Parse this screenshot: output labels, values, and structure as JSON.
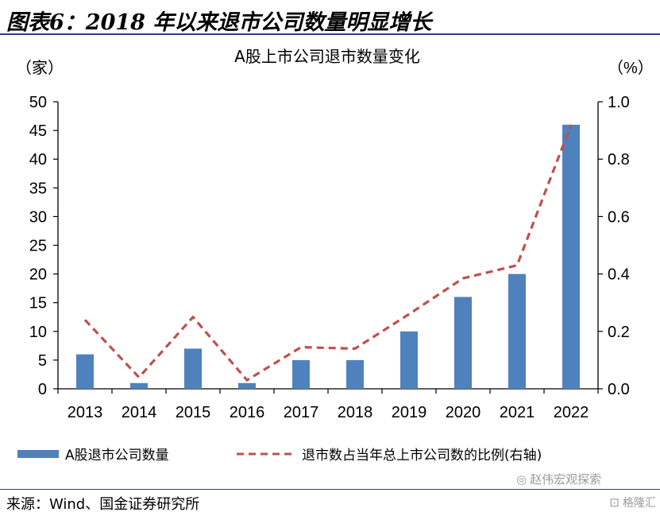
{
  "figure": {
    "title": "图表6：2018 年以来退市公司数量明显增长",
    "source": "来源：Wind、国金证券研究所"
  },
  "watermark": {
    "account": "赵伟宏观探索",
    "platform": "格隆汇"
  },
  "colors": {
    "bar": "#4f81bd",
    "line": "#c0504d",
    "header_rule": "#2f3a8f"
  },
  "chart_data": {
    "type": "bar",
    "title": "A股上市公司退市数量变化",
    "categories": [
      "2013",
      "2014",
      "2015",
      "2016",
      "2017",
      "2018",
      "2019",
      "2020",
      "2021",
      "2022"
    ],
    "series": [
      {
        "name": "A股退市公司数量",
        "type": "bar",
        "axis": "left",
        "values": [
          6,
          1,
          7,
          1,
          5,
          5,
          10,
          16,
          20,
          46
        ]
      },
      {
        "name": "退市数占当年总上市公司数的比例(右轴)",
        "type": "line",
        "style": "dashed",
        "axis": "right",
        "values": [
          0.24,
          0.04,
          0.25,
          0.03,
          0.145,
          0.14,
          0.26,
          0.385,
          0.43,
          0.92
        ]
      }
    ],
    "y_left": {
      "unit_label": "（家）",
      "ticks": [
        "0",
        "5",
        "10",
        "15",
        "20",
        "25",
        "30",
        "35",
        "40",
        "45",
        "50"
      ],
      "ylim": [
        0,
        50
      ]
    },
    "y_right": {
      "unit_label": "（%）",
      "ticks": [
        "0.0",
        "0.2",
        "0.4",
        "0.6",
        "0.8",
        "1.0"
      ],
      "ylim": [
        0,
        1.0
      ]
    },
    "grid": false,
    "legend_position": "bottom"
  }
}
